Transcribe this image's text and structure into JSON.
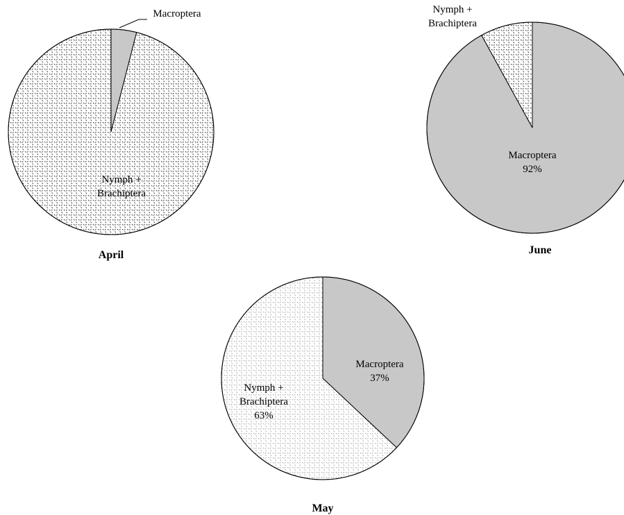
{
  "colors": {
    "macroptera_fill": "#c8c8c8",
    "nymph_fill_background": "#ffffff",
    "nymph_pattern_stroke": "#555555",
    "outline": "#000000"
  },
  "chart_data": [
    {
      "type": "pie",
      "title": "April",
      "slices": [
        {
          "label": "Macroptera",
          "value": 4,
          "display": [
            "Macroptera"
          ],
          "pattern": "solid-gray"
        },
        {
          "label": "Nymph + Brachiptera",
          "value": 96,
          "display": [
            "Nymph +",
            "Brachiptera"
          ],
          "pattern": "dots"
        }
      ]
    },
    {
      "type": "pie",
      "title": "June",
      "slices": [
        {
          "label": "Macroptera",
          "value": 92,
          "display": [
            "Macroptera",
            "92%"
          ],
          "pattern": "solid-gray"
        },
        {
          "label": "Nymph + Brachiptera",
          "value": 8,
          "display": [
            "Nymph +",
            "Brachiptera"
          ],
          "pattern": "dots"
        }
      ]
    },
    {
      "type": "pie",
      "title": "May",
      "slices": [
        {
          "label": "Macroptera",
          "value": 37,
          "display": [
            "Macroptera",
            "37%"
          ],
          "pattern": "solid-gray"
        },
        {
          "label": "Nymph + Brachiptera",
          "value": 63,
          "display": [
            "Nymph +",
            "Brachiptera",
            "63%"
          ],
          "pattern": "dots-light"
        }
      ]
    }
  ]
}
